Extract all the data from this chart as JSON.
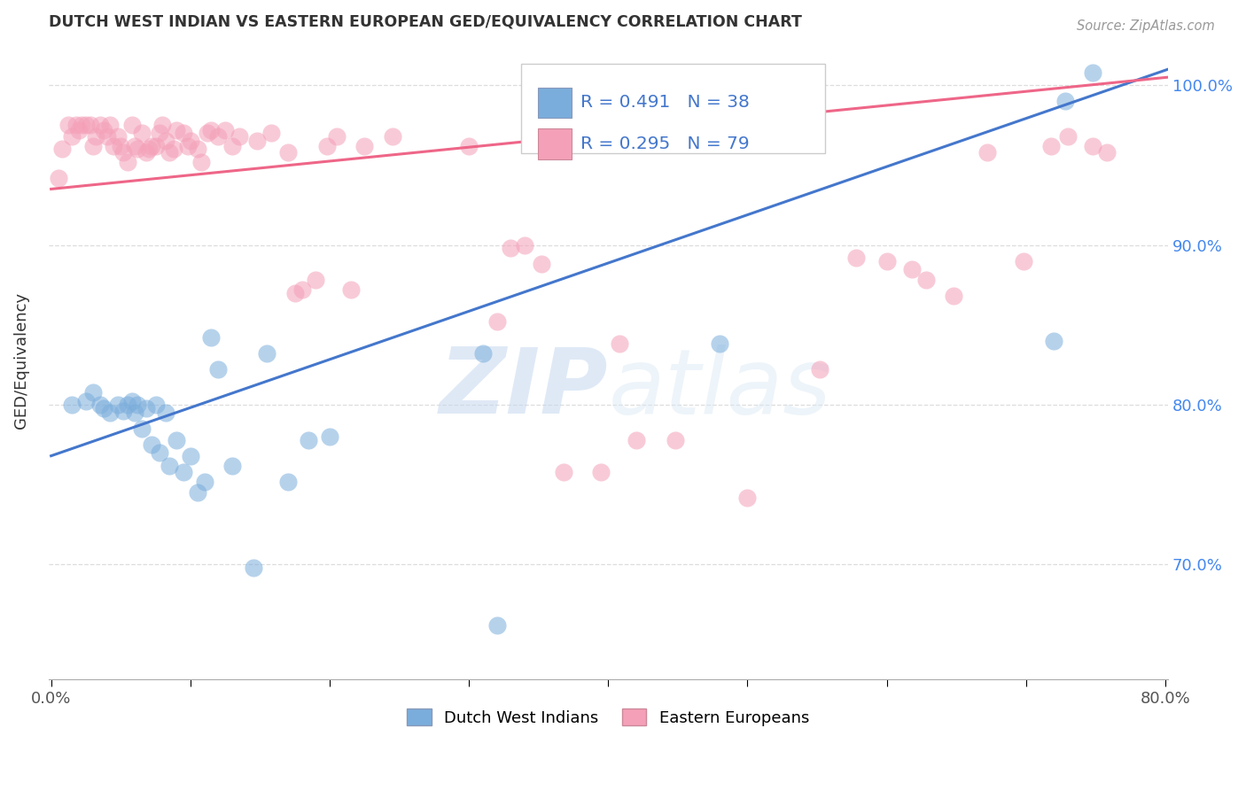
{
  "title": "DUTCH WEST INDIAN VS EASTERN EUROPEAN GED/EQUIVALENCY CORRELATION CHART",
  "source": "Source: ZipAtlas.com",
  "ylabel": "GED/Equivalency",
  "xlim": [
    -0.002,
    0.802
  ],
  "ylim": [
    0.628,
    1.028
  ],
  "yticks": [
    0.7,
    0.8,
    0.9,
    1.0
  ],
  "ytick_labels": [
    "70.0%",
    "80.0%",
    "90.0%",
    "100.0%"
  ],
  "xticks": [
    0.0,
    0.1,
    0.2,
    0.3,
    0.4,
    0.5,
    0.6,
    0.7,
    0.8
  ],
  "xtick_labels": [
    "0.0%",
    "",
    "",
    "",
    "",
    "",
    "",
    "",
    "80.0%"
  ],
  "r_blue": "0.491",
  "n_blue": "38",
  "r_pink": "0.295",
  "n_pink": "79",
  "blue_color": "#7aaddb",
  "pink_color": "#f4a0b8",
  "blue_line_color": "#4477cc",
  "pink_line_color": "#ee6688",
  "right_tick_color": "#4488ee",
  "watermark_color": "#d5e5f5",
  "blue_line_x0": 0.0,
  "blue_line_y0": 0.768,
  "blue_line_x1": 0.802,
  "blue_line_y1": 1.01,
  "pink_line_x0": 0.0,
  "pink_line_y0": 0.935,
  "pink_line_x1": 0.802,
  "pink_line_y1": 1.005,
  "blue_scatter_x": [
    0.015,
    0.025,
    0.03,
    0.035,
    0.038,
    0.042,
    0.048,
    0.052,
    0.055,
    0.058,
    0.06,
    0.062,
    0.065,
    0.068,
    0.072,
    0.075,
    0.078,
    0.082,
    0.085,
    0.09,
    0.095,
    0.1,
    0.105,
    0.11,
    0.115,
    0.12,
    0.13,
    0.145,
    0.155,
    0.17,
    0.185,
    0.2,
    0.31,
    0.32,
    0.48,
    0.72,
    0.728,
    0.748
  ],
  "blue_scatter_y": [
    0.8,
    0.802,
    0.808,
    0.8,
    0.798,
    0.795,
    0.8,
    0.796,
    0.8,
    0.802,
    0.795,
    0.8,
    0.785,
    0.798,
    0.775,
    0.8,
    0.77,
    0.795,
    0.762,
    0.778,
    0.758,
    0.768,
    0.745,
    0.752,
    0.842,
    0.822,
    0.762,
    0.698,
    0.832,
    0.752,
    0.778,
    0.78,
    0.832,
    0.662,
    0.838,
    0.84,
    0.99,
    1.008
  ],
  "pink_scatter_x": [
    0.005,
    0.008,
    0.012,
    0.015,
    0.018,
    0.02,
    0.022,
    0.025,
    0.028,
    0.03,
    0.032,
    0.035,
    0.038,
    0.04,
    0.042,
    0.045,
    0.048,
    0.05,
    0.052,
    0.055,
    0.058,
    0.06,
    0.062,
    0.065,
    0.068,
    0.07,
    0.072,
    0.075,
    0.078,
    0.08,
    0.082,
    0.085,
    0.088,
    0.09,
    0.095,
    0.098,
    0.1,
    0.105,
    0.108,
    0.112,
    0.115,
    0.12,
    0.125,
    0.13,
    0.135,
    0.148,
    0.158,
    0.17,
    0.175,
    0.18,
    0.19,
    0.198,
    0.205,
    0.215,
    0.225,
    0.245,
    0.3,
    0.32,
    0.33,
    0.34,
    0.352,
    0.368,
    0.395,
    0.408,
    0.42,
    0.448,
    0.5,
    0.552,
    0.578,
    0.6,
    0.618,
    0.628,
    0.648,
    0.672,
    0.698,
    0.718,
    0.73,
    0.748,
    0.758
  ],
  "pink_scatter_y": [
    0.942,
    0.96,
    0.975,
    0.968,
    0.975,
    0.972,
    0.975,
    0.975,
    0.975,
    0.962,
    0.968,
    0.975,
    0.972,
    0.968,
    0.975,
    0.962,
    0.968,
    0.962,
    0.958,
    0.952,
    0.975,
    0.962,
    0.96,
    0.97,
    0.958,
    0.96,
    0.962,
    0.962,
    0.97,
    0.975,
    0.965,
    0.958,
    0.96,
    0.972,
    0.97,
    0.962,
    0.965,
    0.96,
    0.952,
    0.97,
    0.972,
    0.968,
    0.972,
    0.962,
    0.968,
    0.965,
    0.97,
    0.958,
    0.87,
    0.872,
    0.878,
    0.962,
    0.968,
    0.872,
    0.962,
    0.968,
    0.962,
    0.852,
    0.898,
    0.9,
    0.888,
    0.758,
    0.758,
    0.838,
    0.778,
    0.778,
    0.742,
    0.822,
    0.892,
    0.89,
    0.885,
    0.878,
    0.868,
    0.958,
    0.89,
    0.962,
    0.968,
    0.962,
    0.958
  ]
}
